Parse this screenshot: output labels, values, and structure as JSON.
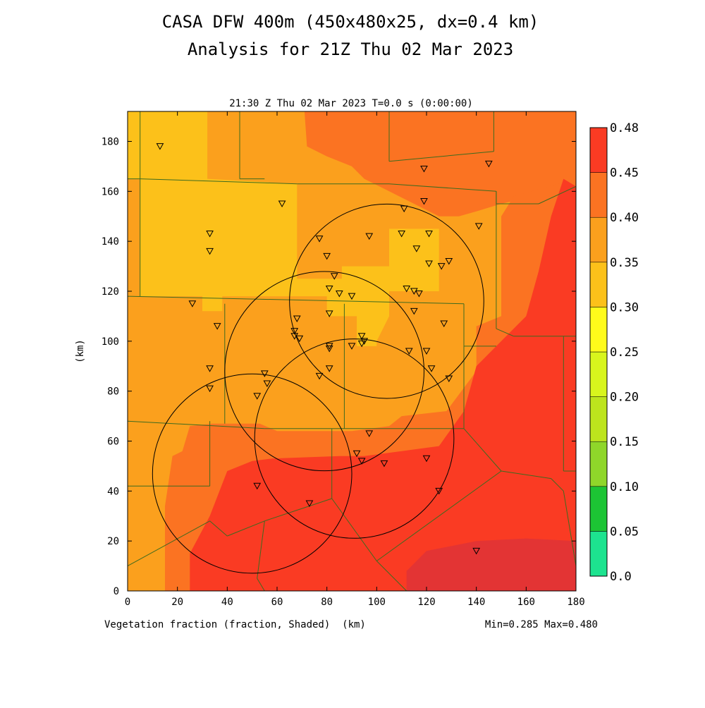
{
  "chart_data": {
    "type": "heatmap",
    "title": "CASA DFW 400m (450x480x25, dx=0.4 km)",
    "subtitle": "Analysis for 21Z Thu 02 Mar 2023",
    "time_label": "21:30 Z Thu 02 Mar 2023   T=0.0 s (0:00:00)",
    "xlabel": "(km)",
    "ylabel": "(km)",
    "field_label": "Vegetation fraction (fraction, Shaded)",
    "minmax_label": "Min=0.285 Max=0.480",
    "xlim": [
      0,
      180
    ],
    "ylim": [
      0,
      192
    ],
    "x_ticks": [
      "0",
      "20",
      "40",
      "60",
      "80",
      "100",
      "120",
      "140",
      "160",
      "180"
    ],
    "y_ticks": [
      "0",
      "20",
      "40",
      "60",
      "80",
      "100",
      "120",
      "140",
      "160",
      "180"
    ],
    "colorbar": {
      "levels": [
        "0.0",
        "0.05",
        "0.10",
        "0.15",
        "0.20",
        "0.25",
        "0.30",
        "0.35",
        "0.40",
        "0.45",
        "0.48"
      ],
      "colors": [
        "#1de38f",
        "#1cc434",
        "#8fd62a",
        "#bde41d",
        "#d8f51d",
        "#fffb1b",
        "#fcc11a",
        "#fba01d",
        "#fb7322",
        "#fa3b23",
        "#e33434"
      ]
    },
    "shading_regions": [
      {
        "level": "0.30-0.35",
        "color": "#fba01d",
        "polygon": [
          [
            0,
            0
          ],
          [
            180,
            0
          ],
          [
            180,
            192
          ],
          [
            0,
            192
          ]
        ]
      },
      {
        "level": "0.25-0.30",
        "color": "#fcc11a",
        "polygon": [
          [
            0,
            192
          ],
          [
            32,
            192
          ],
          [
            32,
            165
          ],
          [
            68,
            163
          ],
          [
            68,
            125
          ],
          [
            86,
            125
          ],
          [
            86,
            130
          ],
          [
            105,
            130
          ],
          [
            105,
            145
          ],
          [
            125,
            145
          ],
          [
            125,
            120
          ],
          [
            105,
            120
          ],
          [
            105,
            110
          ],
          [
            100,
            100
          ],
          [
            100,
            98
          ],
          [
            92,
            98
          ],
          [
            92,
            110
          ],
          [
            80,
            110
          ],
          [
            80,
            118
          ],
          [
            38,
            118
          ],
          [
            38,
            112
          ],
          [
            30,
            112
          ],
          [
            30,
            118
          ],
          [
            5,
            118
          ],
          [
            5,
            165
          ],
          [
            0,
            165
          ]
        ]
      },
      {
        "level": "0.35-0.40",
        "color": "#fb7322",
        "polygon": [
          [
            71,
            192
          ],
          [
            180,
            192
          ],
          [
            180,
            162
          ],
          [
            150,
            155
          ],
          [
            140,
            152
          ],
          [
            133,
            150
          ],
          [
            125,
            150
          ],
          [
            105,
            160
          ],
          [
            95,
            165
          ],
          [
            90,
            170
          ],
          [
            80,
            174
          ],
          [
            72,
            178
          ]
        ]
      },
      {
        "level": "0.35-0.40",
        "color": "#fb7322",
        "polygon": [
          [
            180,
            0
          ],
          [
            180,
            165
          ],
          [
            155,
            158
          ],
          [
            150,
            150
          ],
          [
            150,
            110
          ],
          [
            140,
            106
          ],
          [
            140,
            88
          ],
          [
            128,
            72
          ],
          [
            110,
            70
          ],
          [
            105,
            66
          ],
          [
            90,
            64
          ],
          [
            60,
            64
          ],
          [
            53,
            67
          ],
          [
            34,
            67
          ],
          [
            25,
            66
          ],
          [
            22,
            56
          ],
          [
            18,
            54
          ],
          [
            15,
            34
          ],
          [
            15,
            0
          ]
        ]
      },
      {
        "level": "0.40-0.45",
        "color": "#fa3b23",
        "polygon": [
          [
            180,
            0
          ],
          [
            180,
            162
          ],
          [
            175,
            165
          ],
          [
            170,
            150
          ],
          [
            165,
            128
          ],
          [
            160,
            110
          ],
          [
            150,
            100
          ],
          [
            140,
            90
          ],
          [
            135,
            72
          ],
          [
            125,
            58
          ],
          [
            110,
            56
          ],
          [
            95,
            54
          ],
          [
            85,
            54
          ],
          [
            58,
            53
          ],
          [
            50,
            52
          ],
          [
            45,
            50
          ],
          [
            40,
            48
          ],
          [
            33,
            30
          ],
          [
            25,
            15
          ],
          [
            25,
            0
          ]
        ]
      },
      {
        "level": "0.45-0.48",
        "color": "#e33434",
        "polygon": [
          [
            115,
            0
          ],
          [
            180,
            0
          ],
          [
            180,
            20
          ],
          [
            160,
            21
          ],
          [
            140,
            20
          ],
          [
            120,
            16
          ],
          [
            112,
            8
          ],
          [
            112,
            0
          ]
        ]
      }
    ],
    "boundary_lines": [
      [
        [
          5,
          192
        ],
        [
          5,
          118
        ]
      ],
      [
        [
          0,
          118
        ],
        [
          135,
          115
        ]
      ],
      [
        [
          0,
          165
        ],
        [
          5,
          165
        ]
      ],
      [
        [
          5,
          165
        ],
        [
          68,
          163
        ]
      ],
      [
        [
          68,
          163
        ],
        [
          105,
          163
        ]
      ],
      [
        [
          105,
          163
        ],
        [
          148,
          160
        ]
      ],
      [
        [
          148,
          160
        ],
        [
          148,
          155
        ]
      ],
      [
        [
          148,
          155
        ],
        [
          165,
          155
        ]
      ],
      [
        [
          165,
          155
        ],
        [
          180,
          162
        ]
      ],
      [
        [
          45,
          192
        ],
        [
          45,
          165
        ]
      ],
      [
        [
          45,
          165
        ],
        [
          55,
          165
        ]
      ],
      [
        [
          105,
          192
        ],
        [
          105,
          172
        ]
      ],
      [
        [
          105,
          172
        ],
        [
          147,
          176
        ]
      ],
      [
        [
          147,
          176
        ],
        [
          147,
          192
        ]
      ],
      [
        [
          148,
          160
        ],
        [
          148,
          105
        ]
      ],
      [
        [
          148,
          105
        ],
        [
          155,
          102
        ]
      ],
      [
        [
          155,
          102
        ],
        [
          180,
          102
        ]
      ],
      [
        [
          135,
          115
        ],
        [
          135,
          98
        ]
      ],
      [
        [
          135,
          98
        ],
        [
          148,
          98
        ]
      ],
      [
        [
          135,
          98
        ],
        [
          135,
          65
        ]
      ],
      [
        [
          135,
          65
        ],
        [
          55,
          65
        ]
      ],
      [
        [
          55,
          65
        ],
        [
          0,
          68
        ]
      ],
      [
        [
          39,
          115
        ],
        [
          39,
          67
        ]
      ],
      [
        [
          87,
          115
        ],
        [
          87,
          65
        ]
      ],
      [
        [
          33,
          68
        ],
        [
          33,
          42
        ]
      ],
      [
        [
          33,
          42
        ],
        [
          0,
          42
        ]
      ],
      [
        [
          0,
          42
        ],
        [
          0,
          0
        ]
      ],
      [
        [
          82,
          65
        ],
        [
          82,
          37
        ]
      ],
      [
        [
          82,
          37
        ],
        [
          55,
          28
        ]
      ],
      [
        [
          55,
          28
        ],
        [
          40,
          22
        ]
      ],
      [
        [
          40,
          22
        ],
        [
          33,
          28
        ]
      ],
      [
        [
          33,
          28
        ],
        [
          0,
          10
        ]
      ],
      [
        [
          82,
          37
        ],
        [
          100,
          12
        ]
      ],
      [
        [
          100,
          12
        ],
        [
          150,
          48
        ]
      ],
      [
        [
          150,
          48
        ],
        [
          170,
          45
        ]
      ],
      [
        [
          170,
          45
        ],
        [
          175,
          40
        ]
      ],
      [
        [
          175,
          40
        ],
        [
          180,
          10
        ]
      ],
      [
        [
          135,
          65
        ],
        [
          150,
          48
        ]
      ],
      [
        [
          175,
          102
        ],
        [
          175,
          48
        ]
      ],
      [
        [
          175,
          48
        ],
        [
          180,
          48
        ]
      ],
      [
        [
          100,
          12
        ],
        [
          112,
          0
        ]
      ],
      [
        [
          55,
          28
        ],
        [
          52,
          5
        ]
      ],
      [
        [
          52,
          5
        ],
        [
          55,
          0
        ]
      ]
    ],
    "radar_rings": [
      {
        "center": [
          104,
          116
        ],
        "radius": 39
      },
      {
        "center": [
          79,
          88
        ],
        "radius": 40
      },
      {
        "center": [
          91,
          61
        ],
        "radius": 40
      },
      {
        "center": [
          50,
          47
        ],
        "radius": 40
      }
    ],
    "stations": [
      [
        13,
        178
      ],
      [
        33,
        143
      ],
      [
        33,
        136
      ],
      [
        62,
        155
      ],
      [
        119,
        169
      ],
      [
        145,
        171
      ],
      [
        111,
        153
      ],
      [
        119,
        156
      ],
      [
        141,
        146
      ],
      [
        110,
        143
      ],
      [
        121,
        143
      ],
      [
        97,
        142
      ],
      [
        77,
        141
      ],
      [
        80,
        134
      ],
      [
        116,
        137
      ],
      [
        121,
        131
      ],
      [
        126,
        130
      ],
      [
        129,
        132
      ],
      [
        83,
        126
      ],
      [
        81,
        121
      ],
      [
        85,
        119
      ],
      [
        90,
        118
      ],
      [
        112,
        121
      ],
      [
        115,
        120
      ],
      [
        117,
        119
      ],
      [
        26,
        115
      ],
      [
        36,
        106
      ],
      [
        81,
        111
      ],
      [
        115,
        112
      ],
      [
        127,
        107
      ],
      [
        67,
        104
      ],
      [
        67,
        102
      ],
      [
        69,
        101
      ],
      [
        68,
        109
      ],
      [
        94,
        102
      ],
      [
        95,
        100
      ],
      [
        94,
        99
      ],
      [
        81,
        97
      ],
      [
        81,
        98
      ],
      [
        90,
        98
      ],
      [
        113,
        96
      ],
      [
        120,
        96
      ],
      [
        33,
        89
      ],
      [
        55,
        87
      ],
      [
        56,
        83
      ],
      [
        77,
        86
      ],
      [
        81,
        89
      ],
      [
        122,
        89
      ],
      [
        129,
        85
      ],
      [
        33,
        81
      ],
      [
        52,
        78
      ],
      [
        97,
        63
      ],
      [
        92,
        55
      ],
      [
        94,
        52
      ],
      [
        103,
        51
      ],
      [
        120,
        53
      ],
      [
        52,
        42
      ],
      [
        73,
        35
      ],
      [
        125,
        40
      ],
      [
        140,
        16
      ]
    ]
  }
}
